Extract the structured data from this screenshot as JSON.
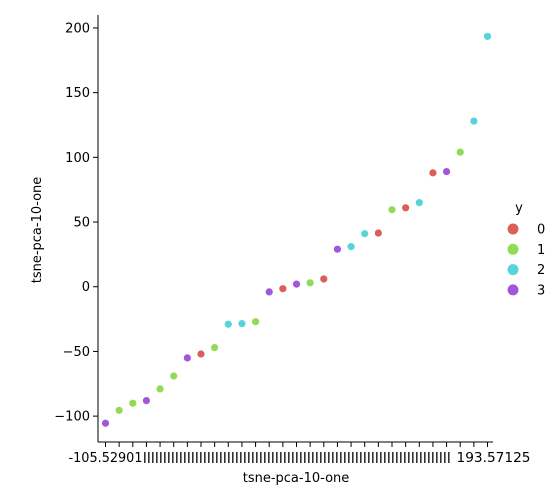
{
  "chart_data": {
    "type": "scatter",
    "xlabel": "tsne-pca-10-one",
    "ylabel": "tsne-pca-10-one",
    "ylim": [
      -120,
      210
    ],
    "yticks": [
      -100,
      -50,
      0,
      50,
      100,
      150,
      200
    ],
    "ytick_labels": [
      "−100",
      "−50",
      "0",
      "50",
      "100",
      "150",
      "200"
    ],
    "x_tick_labels_visible": [
      "-105.52901",
      "193.57125"
    ],
    "legend": {
      "title": "y",
      "placement": "right",
      "entries": [
        {
          "label": "0",
          "color": "#db5f57"
        },
        {
          "label": "1",
          "color": "#91db57"
        },
        {
          "label": "2",
          "color": "#57d3db"
        },
        {
          "label": "3",
          "color": "#a157db"
        }
      ]
    },
    "points": [
      {
        "y": -105.5,
        "class": "3"
      },
      {
        "y": -95.5,
        "class": "1"
      },
      {
        "y": -90.0,
        "class": "1"
      },
      {
        "y": -88.0,
        "class": "3"
      },
      {
        "y": -79.0,
        "class": "1"
      },
      {
        "y": -69.0,
        "class": "1"
      },
      {
        "y": -55.0,
        "class": "3"
      },
      {
        "y": -52.0,
        "class": "0"
      },
      {
        "y": -47.0,
        "class": "1"
      },
      {
        "y": -29.0,
        "class": "2"
      },
      {
        "y": -28.5,
        "class": "2"
      },
      {
        "y": -27.0,
        "class": "1"
      },
      {
        "y": -4.0,
        "class": "3"
      },
      {
        "y": -1.5,
        "class": "0"
      },
      {
        "y": 2.0,
        "class": "3"
      },
      {
        "y": 3.0,
        "class": "1"
      },
      {
        "y": 6.0,
        "class": "0"
      },
      {
        "y": 29.0,
        "class": "3"
      },
      {
        "y": 31.0,
        "class": "2"
      },
      {
        "y": 41.0,
        "class": "2"
      },
      {
        "y": 41.5,
        "class": "0"
      },
      {
        "y": 59.5,
        "class": "1"
      },
      {
        "y": 61.0,
        "class": "0"
      },
      {
        "y": 65.0,
        "class": "2"
      },
      {
        "y": 88.0,
        "class": "0"
      },
      {
        "y": 89.0,
        "class": "3"
      },
      {
        "y": 104.0,
        "class": "1"
      },
      {
        "y": 128.0,
        "class": "2"
      },
      {
        "y": 193.5,
        "class": "2"
      }
    ]
  }
}
